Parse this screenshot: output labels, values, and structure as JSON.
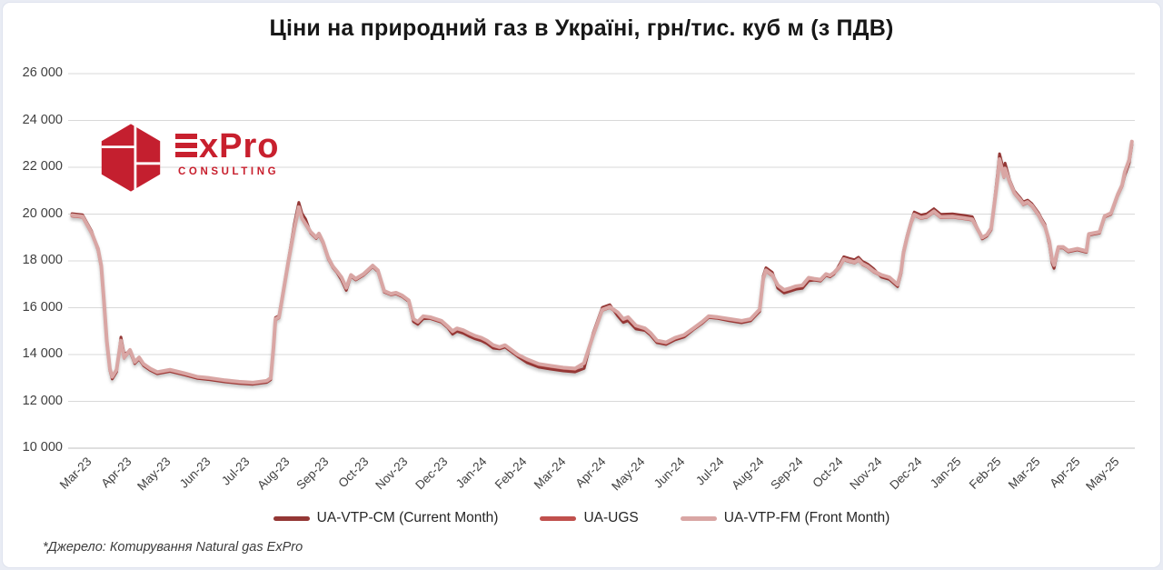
{
  "page_title": "Ціни на природний газ в Україні, грн/тис. куб м (з ПДВ)",
  "logo": {
    "text": "ExPro",
    "text_rest": "xPro",
    "subtext": "CONSULTING",
    "brand_color": "#c8202e"
  },
  "footer": {
    "source_note": "*Джерело: Котирування Natural gas ExPro"
  },
  "colors": {
    "grid": "#d9d9d9",
    "axis": "#bfbfbf",
    "axis_text": "#3f3f3f",
    "title_text": "#171717",
    "background": "#ffffff"
  },
  "chart_data": {
    "type": "line",
    "title": "Ціни на природний газ в Україні, грн/тис. куб м (з ПДВ)",
    "xlabel": "",
    "ylabel": "грн/тис. куб м (з ПДВ)",
    "grid": true,
    "legend_position": "bottom",
    "y_axis": {
      "min": 10000,
      "max": 26000,
      "tick_step": 2000,
      "ticks": [
        {
          "value": 26000,
          "label": "26 000"
        },
        {
          "value": 24000,
          "label": "24 000"
        },
        {
          "value": 22000,
          "label": "22 000"
        },
        {
          "value": 20000,
          "label": "20 000"
        },
        {
          "value": 18000,
          "label": "18 000"
        },
        {
          "value": 16000,
          "label": "16 000"
        },
        {
          "value": 14000,
          "label": "14 000"
        },
        {
          "value": 12000,
          "label": "12 000"
        },
        {
          "value": 10000,
          "label": "10 000"
        }
      ]
    },
    "x_axis": {
      "unit": "month",
      "tick_labels": [
        "Mar-23",
        "Apr-23",
        "May-23",
        "Jun-23",
        "Jul-23",
        "Aug-23",
        "Sep-23",
        "Oct-23",
        "Nov-23",
        "Dec-23",
        "Jan-24",
        "Feb-24",
        "Mar-24",
        "Apr-24",
        "May-24",
        "Jun-24",
        "Jul-24",
        "Aug-24",
        "Sep-24",
        "Oct-24",
        "Nov-24",
        "Dec-24",
        "Jan-25",
        "Feb-25",
        "Mar-25",
        "Apr-25",
        "May-25"
      ]
    },
    "series": [
      {
        "name": "UA-VTP-CM (Current Month)",
        "color": "#943735",
        "width": 3,
        "derive": {
          "from": "UA-VTP-FM (Front Month)",
          "delta_segments": [
            [
              -0.2,
              0.45,
              70
            ],
            [
              0.45,
              0.8,
              -70
            ],
            [
              0.8,
              1.0,
              -90
            ],
            [
              1.0,
              1.18,
              150
            ],
            [
              1.18,
              4.9,
              -70
            ],
            [
              4.9,
              5.45,
              60
            ],
            [
              5.45,
              5.75,
              200
            ],
            [
              5.75,
              6.6,
              -50
            ],
            [
              6.6,
              6.85,
              -110
            ],
            [
              6.85,
              8.4,
              -50
            ],
            [
              8.4,
              8.8,
              -110
            ],
            [
              8.8,
              9.4,
              -60
            ],
            [
              9.4,
              10.6,
              -130
            ],
            [
              10.6,
              11.2,
              -80
            ],
            [
              11.2,
              12.68,
              -140
            ],
            [
              12.68,
              12.95,
              -230
            ],
            [
              12.95,
              13.55,
              90
            ],
            [
              13.55,
              14.15,
              -150
            ],
            [
              14.15,
              15.35,
              -90
            ],
            [
              15.35,
              16.2,
              -60
            ],
            [
              16.2,
              17.26,
              -80
            ],
            [
              17.26,
              17.6,
              110
            ],
            [
              17.6,
              18.55,
              -130
            ],
            [
              18.55,
              19.15,
              -60
            ],
            [
              19.15,
              20.18,
              100
            ],
            [
              20.18,
              20.82,
              -90
            ],
            [
              20.82,
              21.1,
              60
            ],
            [
              21.1,
              22.78,
              110
            ],
            [
              22.78,
              23.16,
              -60
            ],
            [
              23.16,
              23.5,
              230
            ],
            [
              23.5,
              24.46,
              80
            ],
            [
              24.46,
              24.75,
              -140
            ],
            [
              24.75,
              26.42,
              -50
            ],
            [
              26.42,
              26.65,
              -140
            ]
          ]
        }
      },
      {
        "name": "UA-UGS",
        "color": "#c0504d",
        "width": 3,
        "derive": {
          "from": "UA-VTP-FM (Front Month)",
          "delta_segments": [
            [
              -0.2,
              26.65,
              -35
            ]
          ]
        }
      },
      {
        "name": "UA-VTP-FM (Front Month)",
        "color": "#d9a6a4",
        "width": 4,
        "points": [
          [
            -0.18,
            19950
          ],
          [
            0.09,
            19900
          ],
          [
            0.32,
            19200
          ],
          [
            0.48,
            18520
          ],
          [
            0.56,
            17800
          ],
          [
            0.63,
            16300
          ],
          [
            0.7,
            14600
          ],
          [
            0.78,
            13400
          ],
          [
            0.84,
            13050
          ],
          [
            0.95,
            13350
          ],
          [
            1.06,
            14600
          ],
          [
            1.14,
            13880
          ],
          [
            1.29,
            14200
          ],
          [
            1.41,
            13680
          ],
          [
            1.52,
            13880
          ],
          [
            1.63,
            13600
          ],
          [
            1.8,
            13400
          ],
          [
            1.98,
            13250
          ],
          [
            2.3,
            13350
          ],
          [
            2.67,
            13200
          ],
          [
            3.0,
            13050
          ],
          [
            3.3,
            13000
          ],
          [
            3.7,
            12900
          ],
          [
            4.05,
            12840
          ],
          [
            4.4,
            12800
          ],
          [
            4.75,
            12880
          ],
          [
            4.85,
            13000
          ],
          [
            4.92,
            14300
          ],
          [
            4.97,
            15520
          ],
          [
            5.06,
            15600
          ],
          [
            5.14,
            16400
          ],
          [
            5.3,
            18000
          ],
          [
            5.45,
            19400
          ],
          [
            5.56,
            20300
          ],
          [
            5.64,
            19830
          ],
          [
            5.73,
            19590
          ],
          [
            5.86,
            19240
          ],
          [
            6.0,
            19010
          ],
          [
            6.07,
            19170
          ],
          [
            6.17,
            18815
          ],
          [
            6.3,
            18150
          ],
          [
            6.42,
            17770
          ],
          [
            6.52,
            17570
          ],
          [
            6.64,
            17300
          ],
          [
            6.76,
            16850
          ],
          [
            6.88,
            17400
          ],
          [
            7.0,
            17240
          ],
          [
            7.2,
            17440
          ],
          [
            7.43,
            17800
          ],
          [
            7.56,
            17600
          ],
          [
            7.72,
            16720
          ],
          [
            7.89,
            16600
          ],
          [
            8.02,
            16640
          ],
          [
            8.18,
            16520
          ],
          [
            8.34,
            16320
          ],
          [
            8.46,
            15520
          ],
          [
            8.57,
            15400
          ],
          [
            8.71,
            15640
          ],
          [
            8.88,
            15600
          ],
          [
            9.03,
            15520
          ],
          [
            9.17,
            15440
          ],
          [
            9.33,
            15200
          ],
          [
            9.45,
            15000
          ],
          [
            9.56,
            15120
          ],
          [
            9.72,
            15040
          ],
          [
            9.86,
            14920
          ],
          [
            10.02,
            14800
          ],
          [
            10.18,
            14720
          ],
          [
            10.32,
            14600
          ],
          [
            10.48,
            14400
          ],
          [
            10.64,
            14320
          ],
          [
            10.78,
            14400
          ],
          [
            10.94,
            14200
          ],
          [
            11.1,
            14000
          ],
          [
            11.33,
            13800
          ],
          [
            11.63,
            13600
          ],
          [
            11.93,
            13520
          ],
          [
            12.25,
            13440
          ],
          [
            12.55,
            13400
          ],
          [
            12.78,
            13640
          ],
          [
            13.01,
            14840
          ],
          [
            13.24,
            15920
          ],
          [
            13.43,
            16040
          ],
          [
            13.63,
            15800
          ],
          [
            13.77,
            15520
          ],
          [
            13.89,
            15600
          ],
          [
            14.09,
            15240
          ],
          [
            14.32,
            15120
          ],
          [
            14.46,
            14920
          ],
          [
            14.62,
            14600
          ],
          [
            14.85,
            14520
          ],
          [
            15.08,
            14720
          ],
          [
            15.31,
            14840
          ],
          [
            15.54,
            15120
          ],
          [
            15.77,
            15400
          ],
          [
            15.93,
            15640
          ],
          [
            16.16,
            15600
          ],
          [
            16.46,
            15520
          ],
          [
            16.76,
            15440
          ],
          [
            16.99,
            15520
          ],
          [
            17.15,
            15800
          ],
          [
            17.22,
            15920
          ],
          [
            17.31,
            17240
          ],
          [
            17.38,
            17600
          ],
          [
            17.54,
            17400
          ],
          [
            17.68,
            16960
          ],
          [
            17.84,
            16760
          ],
          [
            18.0,
            16840
          ],
          [
            18.14,
            16920
          ],
          [
            18.3,
            16960
          ],
          [
            18.46,
            17280
          ],
          [
            18.6,
            17240
          ],
          [
            18.76,
            17200
          ],
          [
            18.9,
            17440
          ],
          [
            19.0,
            17380
          ],
          [
            19.1,
            17500
          ],
          [
            19.25,
            17770
          ],
          [
            19.35,
            18080
          ],
          [
            19.5,
            18000
          ],
          [
            19.62,
            17950
          ],
          [
            19.72,
            18060
          ],
          [
            19.82,
            17880
          ],
          [
            19.95,
            17770
          ],
          [
            20.1,
            17570
          ],
          [
            20.3,
            17400
          ],
          [
            20.5,
            17300
          ],
          [
            20.71,
            16990
          ],
          [
            20.8,
            17570
          ],
          [
            20.86,
            18350
          ],
          [
            20.95,
            19010
          ],
          [
            21.05,
            19630
          ],
          [
            21.13,
            19980
          ],
          [
            21.3,
            19850
          ],
          [
            21.45,
            19900
          ],
          [
            21.63,
            20120
          ],
          [
            21.8,
            19880
          ],
          [
            22.1,
            19900
          ],
          [
            22.4,
            19830
          ],
          [
            22.6,
            19780
          ],
          [
            22.85,
            19000
          ],
          [
            22.97,
            19120
          ],
          [
            23.08,
            19400
          ],
          [
            23.24,
            21500
          ],
          [
            23.29,
            22350
          ],
          [
            23.4,
            21600
          ],
          [
            23.43,
            21950
          ],
          [
            23.54,
            21400
          ],
          [
            23.66,
            20920
          ],
          [
            23.82,
            20600
          ],
          [
            23.89,
            20440
          ],
          [
            24.0,
            20520
          ],
          [
            24.11,
            20360
          ],
          [
            24.28,
            19960
          ],
          [
            24.34,
            19760
          ],
          [
            24.44,
            19480
          ],
          [
            24.55,
            18840
          ],
          [
            24.62,
            18040
          ],
          [
            24.67,
            17820
          ],
          [
            24.78,
            18600
          ],
          [
            24.9,
            18600
          ],
          [
            25.03,
            18440
          ],
          [
            25.26,
            18520
          ],
          [
            25.49,
            18420
          ],
          [
            25.55,
            19150
          ],
          [
            25.82,
            19240
          ],
          [
            25.95,
            19920
          ],
          [
            26.11,
            20040
          ],
          [
            26.28,
            20840
          ],
          [
            26.39,
            21240
          ],
          [
            26.46,
            21800
          ],
          [
            26.57,
            22320
          ],
          [
            26.64,
            23100
          ]
        ]
      }
    ]
  }
}
